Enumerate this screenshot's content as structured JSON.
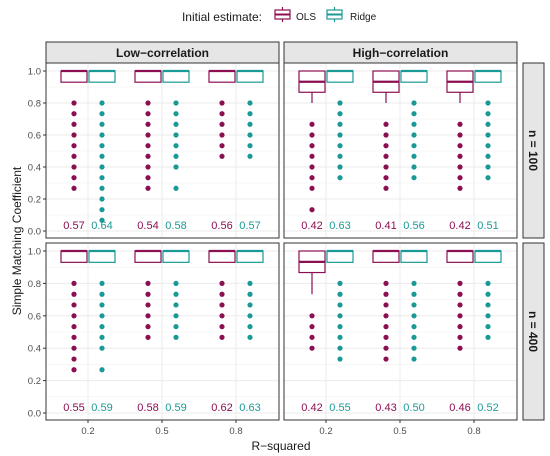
{
  "chart_data": {
    "type": "boxplot",
    "title": "",
    "legend": {
      "title": "Initial estimate:",
      "position": "top",
      "entries": [
        {
          "name": "OLS",
          "color": "#8c0f52"
        },
        {
          "name": "Ridge",
          "color": "#1a9a96"
        }
      ]
    },
    "xlabel": "R−squared",
    "ylabel": "Simple Matching Coefficient",
    "ylim": [
      0.0,
      1.0
    ],
    "yticks": [
      "0.0",
      "0.2",
      "0.4",
      "0.6",
      "0.8",
      "1.0"
    ],
    "categories": [
      "0.2",
      "0.5",
      "0.8"
    ],
    "columns": [
      "Low−correlation",
      "High−correlation"
    ],
    "rows": [
      "n = 100",
      "n = 400"
    ],
    "grid": true,
    "panels": [
      {
        "row": 0,
        "col": 0,
        "groups": [
          {
            "category": "0.2",
            "series": "OLS",
            "q1": 0.93,
            "median": 1.0,
            "q3": 1.0,
            "whisker_low": 0.93,
            "outliers": [
              0.8,
              0.733,
              0.667,
              0.6,
              0.533,
              0.467,
              0.4,
              0.333,
              0.267
            ],
            "label": "0.57"
          },
          {
            "category": "0.2",
            "series": "Ridge",
            "q1": 0.93,
            "median": 1.0,
            "q3": 1.0,
            "whisker_low": 0.93,
            "outliers": [
              0.8,
              0.733,
              0.667,
              0.6,
              0.533,
              0.467,
              0.4,
              0.333,
              0.267,
              0.2,
              0.133,
              0.067
            ],
            "label": "0.64"
          },
          {
            "category": "0.5",
            "series": "OLS",
            "q1": 0.93,
            "median": 1.0,
            "q3": 1.0,
            "whisker_low": 0.93,
            "outliers": [
              0.8,
              0.733,
              0.667,
              0.6,
              0.533,
              0.467,
              0.4,
              0.333,
              0.267
            ],
            "label": "0.54"
          },
          {
            "category": "0.5",
            "series": "Ridge",
            "q1": 0.93,
            "median": 1.0,
            "q3": 1.0,
            "whisker_low": 0.93,
            "outliers": [
              0.8,
              0.733,
              0.667,
              0.6,
              0.533,
              0.467,
              0.4,
              0.267
            ],
            "label": "0.58"
          },
          {
            "category": "0.8",
            "series": "OLS",
            "q1": 0.93,
            "median": 1.0,
            "q3": 1.0,
            "whisker_low": 0.93,
            "outliers": [
              0.8,
              0.733,
              0.667,
              0.6,
              0.533,
              0.467
            ],
            "label": "0.56"
          },
          {
            "category": "0.8",
            "series": "Ridge",
            "q1": 0.93,
            "median": 1.0,
            "q3": 1.0,
            "whisker_low": 0.93,
            "outliers": [
              0.8,
              0.733,
              0.667,
              0.6,
              0.533,
              0.467
            ],
            "label": "0.57"
          }
        ]
      },
      {
        "row": 0,
        "col": 1,
        "groups": [
          {
            "category": "0.2",
            "series": "OLS",
            "q1": 0.867,
            "median": 0.933,
            "q3": 1.0,
            "whisker_low": 0.8,
            "outliers": [
              0.667,
              0.6,
              0.533,
              0.467,
              0.4,
              0.333,
              0.267,
              0.133
            ],
            "label": "0.42"
          },
          {
            "category": "0.2",
            "series": "Ridge",
            "q1": 0.93,
            "median": 1.0,
            "q3": 1.0,
            "whisker_low": 0.93,
            "outliers": [
              0.8,
              0.733,
              0.667,
              0.6,
              0.533,
              0.467,
              0.4,
              0.333
            ],
            "label": "0.63"
          },
          {
            "category": "0.5",
            "series": "OLS",
            "q1": 0.867,
            "median": 0.933,
            "q3": 1.0,
            "whisker_low": 0.8,
            "outliers": [
              0.667,
              0.6,
              0.533,
              0.467,
              0.4,
              0.333,
              0.267
            ],
            "label": "0.41"
          },
          {
            "category": "0.5",
            "series": "Ridge",
            "q1": 0.93,
            "median": 1.0,
            "q3": 1.0,
            "whisker_low": 0.93,
            "outliers": [
              0.8,
              0.733,
              0.667,
              0.6,
              0.533,
              0.467,
              0.4,
              0.333
            ],
            "label": "0.56"
          },
          {
            "category": "0.8",
            "series": "OLS",
            "q1": 0.867,
            "median": 0.933,
            "q3": 1.0,
            "whisker_low": 0.8,
            "outliers": [
              0.667,
              0.6,
              0.533,
              0.467,
              0.4,
              0.333,
              0.267
            ],
            "label": "0.42"
          },
          {
            "category": "0.8",
            "series": "Ridge",
            "q1": 0.93,
            "median": 1.0,
            "q3": 1.0,
            "whisker_low": 0.93,
            "outliers": [
              0.8,
              0.733,
              0.667,
              0.6,
              0.533,
              0.467,
              0.4,
              0.333
            ],
            "label": "0.51"
          }
        ]
      },
      {
        "row": 1,
        "col": 0,
        "groups": [
          {
            "category": "0.2",
            "series": "OLS",
            "q1": 0.93,
            "median": 1.0,
            "q3": 1.0,
            "whisker_low": 0.93,
            "outliers": [
              0.8,
              0.733,
              0.667,
              0.6,
              0.533,
              0.467,
              0.4,
              0.333,
              0.267
            ],
            "label": "0.55"
          },
          {
            "category": "0.2",
            "series": "Ridge",
            "q1": 0.93,
            "median": 1.0,
            "q3": 1.0,
            "whisker_low": 0.93,
            "outliers": [
              0.8,
              0.733,
              0.667,
              0.6,
              0.533,
              0.467,
              0.4,
              0.267
            ],
            "label": "0.59"
          },
          {
            "category": "0.5",
            "series": "OLS",
            "q1": 0.93,
            "median": 1.0,
            "q3": 1.0,
            "whisker_low": 0.93,
            "outliers": [
              0.8,
              0.733,
              0.667,
              0.6,
              0.533,
              0.467
            ],
            "label": "0.58"
          },
          {
            "category": "0.5",
            "series": "Ridge",
            "q1": 0.93,
            "median": 1.0,
            "q3": 1.0,
            "whisker_low": 0.93,
            "outliers": [
              0.8,
              0.733,
              0.667,
              0.6,
              0.533,
              0.467
            ],
            "label": "0.59"
          },
          {
            "category": "0.8",
            "series": "OLS",
            "q1": 0.93,
            "median": 1.0,
            "q3": 1.0,
            "whisker_low": 0.93,
            "outliers": [
              0.8,
              0.733,
              0.667,
              0.6,
              0.533,
              0.467
            ],
            "label": "0.62"
          },
          {
            "category": "0.8",
            "series": "Ridge",
            "q1": 0.93,
            "median": 1.0,
            "q3": 1.0,
            "whisker_low": 0.93,
            "outliers": [
              0.8,
              0.733,
              0.667,
              0.6,
              0.533,
              0.467
            ],
            "label": "0.63"
          }
        ]
      },
      {
        "row": 1,
        "col": 1,
        "groups": [
          {
            "category": "0.2",
            "series": "OLS",
            "q1": 0.867,
            "median": 0.933,
            "q3": 1.0,
            "whisker_low": 0.733,
            "outliers": [
              0.6,
              0.533,
              0.467,
              0.4
            ],
            "label": "0.42"
          },
          {
            "category": "0.2",
            "series": "Ridge",
            "q1": 0.93,
            "median": 1.0,
            "q3": 1.0,
            "whisker_low": 0.93,
            "outliers": [
              0.8,
              0.733,
              0.667,
              0.6,
              0.533,
              0.467,
              0.4,
              0.333
            ],
            "label": "0.55"
          },
          {
            "category": "0.5",
            "series": "OLS",
            "q1": 0.93,
            "median": 1.0,
            "q3": 1.0,
            "whisker_low": 0.93,
            "outliers": [
              0.8,
              0.733,
              0.667,
              0.6,
              0.533,
              0.467,
              0.4,
              0.333
            ],
            "label": "0.43"
          },
          {
            "category": "0.5",
            "series": "Ridge",
            "q1": 0.93,
            "median": 1.0,
            "q3": 1.0,
            "whisker_low": 0.93,
            "outliers": [
              0.8,
              0.733,
              0.667,
              0.6,
              0.533,
              0.467,
              0.4,
              0.333
            ],
            "label": "0.50"
          },
          {
            "category": "0.8",
            "series": "OLS",
            "q1": 0.93,
            "median": 1.0,
            "q3": 1.0,
            "whisker_low": 0.93,
            "outliers": [
              0.8,
              0.733,
              0.667,
              0.6,
              0.533,
              0.467,
              0.4
            ],
            "label": "0.46"
          },
          {
            "category": "0.8",
            "series": "Ridge",
            "q1": 0.93,
            "median": 1.0,
            "q3": 1.0,
            "whisker_low": 0.93,
            "outliers": [
              0.8,
              0.733,
              0.667,
              0.6,
              0.533,
              0.467
            ],
            "label": "0.52"
          }
        ]
      }
    ]
  }
}
